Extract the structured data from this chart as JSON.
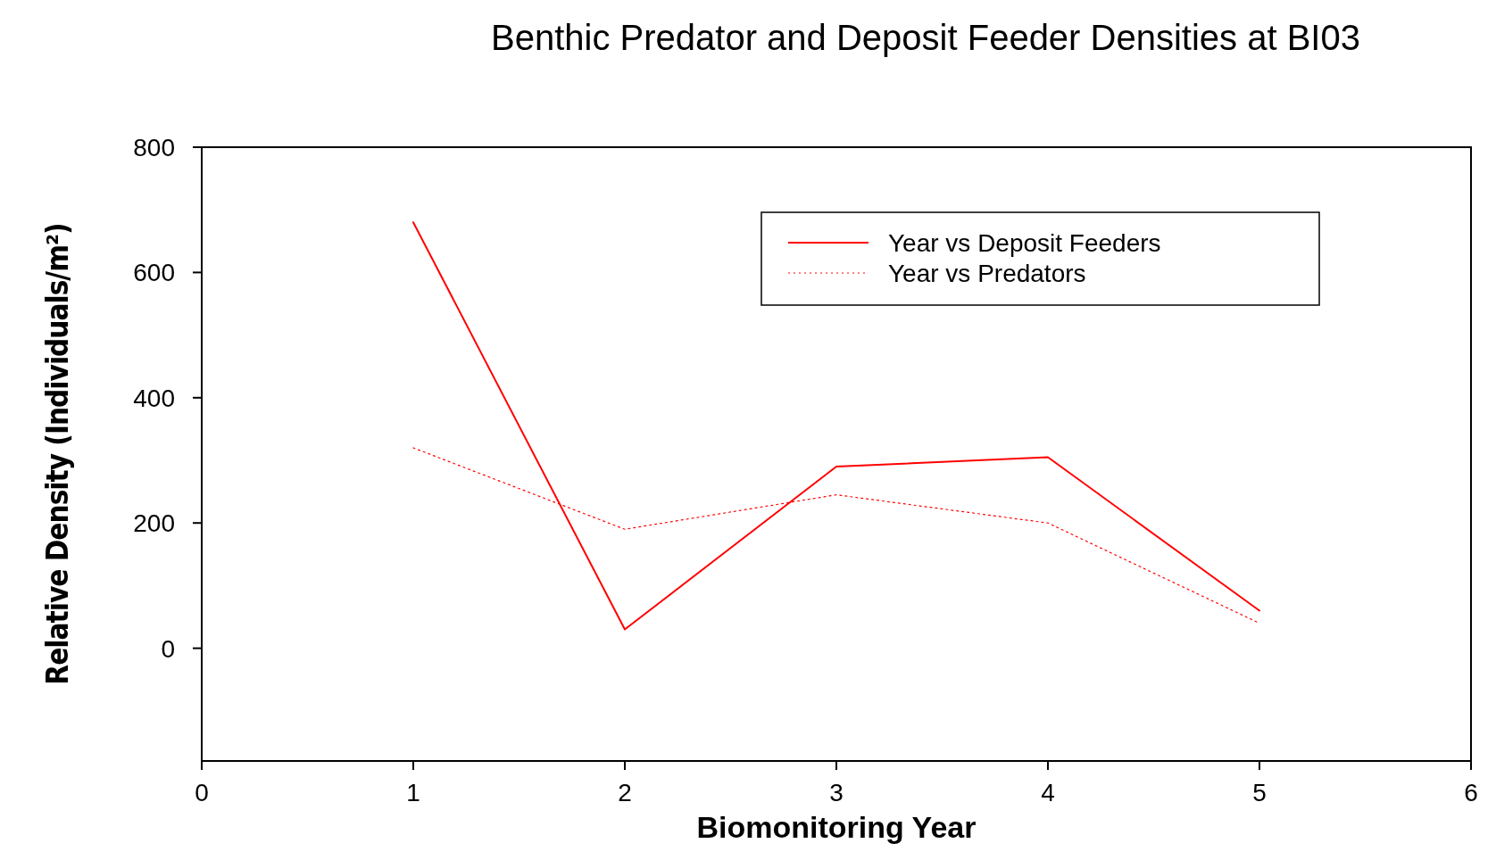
{
  "chart_data": {
    "type": "line",
    "title": "Benthic Predator and Deposit Feeder Densities at BI03",
    "xlabel": "Biomonitoring Year",
    "ylabel": "Relative Density (Individuals/m²)",
    "x": [
      1,
      2,
      3,
      4,
      5
    ],
    "series": [
      {
        "name": "Year vs Deposit Feeders",
        "color": "#ff0000",
        "line_style": "solid",
        "values": [
          680,
          30,
          290,
          305,
          60
        ]
      },
      {
        "name": "Year vs Predators",
        "color": "#ff0000",
        "line_style": "dotted",
        "values": [
          320,
          190,
          245,
          200,
          40
        ]
      }
    ],
    "xlim": [
      0,
      6
    ],
    "xticks": [
      0,
      1,
      2,
      3,
      4,
      5,
      6
    ],
    "ylim": [
      -180,
      800
    ],
    "yticks": [
      0,
      200,
      400,
      600,
      800
    ],
    "grid": false,
    "legend": "top right",
    "marker": "none"
  }
}
